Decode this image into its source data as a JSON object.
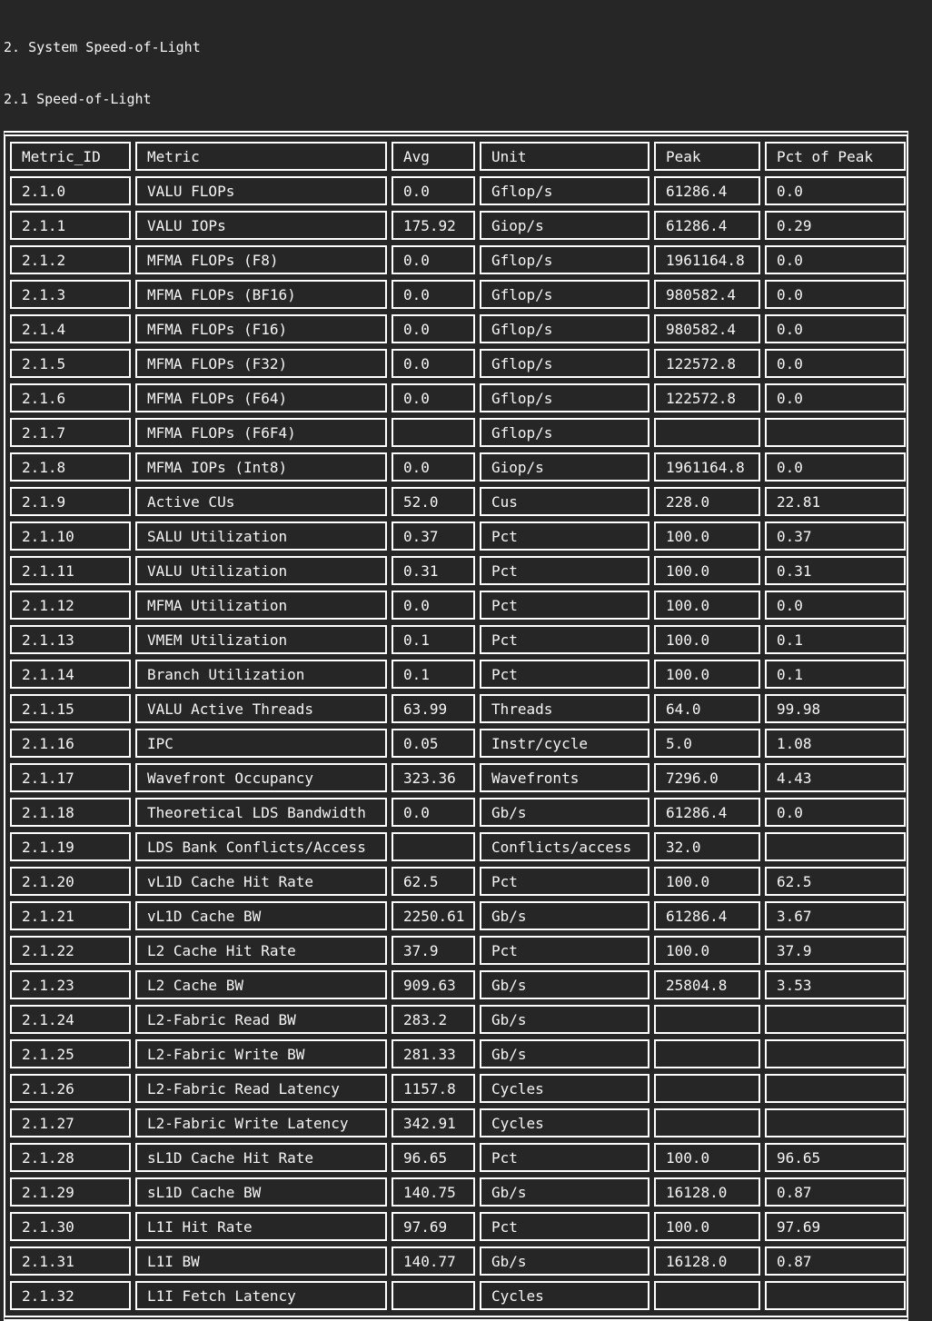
{
  "page": {
    "title_line1": "2. System Speed-of-Light",
    "title_line2": "2.1 Speed-of-Light"
  },
  "colors": {
    "background": "#262626",
    "border": "#ffffff",
    "text": "#f5f5f5"
  },
  "table": {
    "columns": [
      "Metric_ID",
      "Metric",
      "Avg",
      "Unit",
      "Peak",
      "Pct of Peak"
    ],
    "rows": [
      [
        "2.1.0",
        "VALU FLOPs",
        "0.0",
        "Gflop/s",
        "61286.4",
        "0.0"
      ],
      [
        "2.1.1",
        "VALU IOPs",
        "175.92",
        "Giop/s",
        "61286.4",
        "0.29"
      ],
      [
        "2.1.2",
        "MFMA FLOPs (F8)",
        "0.0",
        "Gflop/s",
        "1961164.8",
        "0.0"
      ],
      [
        "2.1.3",
        "MFMA FLOPs (BF16)",
        "0.0",
        "Gflop/s",
        "980582.4",
        "0.0"
      ],
      [
        "2.1.4",
        "MFMA FLOPs (F16)",
        "0.0",
        "Gflop/s",
        "980582.4",
        "0.0"
      ],
      [
        "2.1.5",
        "MFMA FLOPs (F32)",
        "0.0",
        "Gflop/s",
        "122572.8",
        "0.0"
      ],
      [
        "2.1.6",
        "MFMA FLOPs (F64)",
        "0.0",
        "Gflop/s",
        "122572.8",
        "0.0"
      ],
      [
        "2.1.7",
        "MFMA FLOPs (F6F4)",
        "",
        "Gflop/s",
        "",
        ""
      ],
      [
        "2.1.8",
        "MFMA IOPs (Int8)",
        "0.0",
        "Giop/s",
        "1961164.8",
        "0.0"
      ],
      [
        "2.1.9",
        "Active CUs",
        "52.0",
        "Cus",
        "228.0",
        "22.81"
      ],
      [
        "2.1.10",
        "SALU Utilization",
        "0.37",
        "Pct",
        "100.0",
        "0.37"
      ],
      [
        "2.1.11",
        "VALU Utilization",
        "0.31",
        "Pct",
        "100.0",
        "0.31"
      ],
      [
        "2.1.12",
        "MFMA Utilization",
        "0.0",
        "Pct",
        "100.0",
        "0.0"
      ],
      [
        "2.1.13",
        "VMEM Utilization",
        "0.1",
        "Pct",
        "100.0",
        "0.1"
      ],
      [
        "2.1.14",
        "Branch Utilization",
        "0.1",
        "Pct",
        "100.0",
        "0.1"
      ],
      [
        "2.1.15",
        "VALU Active Threads",
        "63.99",
        "Threads",
        "64.0",
        "99.98"
      ],
      [
        "2.1.16",
        "IPC",
        "0.05",
        "Instr/cycle",
        "5.0",
        "1.08"
      ],
      [
        "2.1.17",
        "Wavefront Occupancy",
        "323.36",
        "Wavefronts",
        "7296.0",
        "4.43"
      ],
      [
        "2.1.18",
        "Theoretical LDS Bandwidth",
        "0.0",
        "Gb/s",
        "61286.4",
        "0.0"
      ],
      [
        "2.1.19",
        "LDS Bank Conflicts/Access",
        "",
        "Conflicts/access",
        "32.0",
        ""
      ],
      [
        "2.1.20",
        "vL1D Cache Hit Rate",
        "62.5",
        "Pct",
        "100.0",
        "62.5"
      ],
      [
        "2.1.21",
        "vL1D Cache BW",
        "2250.61",
        "Gb/s",
        "61286.4",
        "3.67"
      ],
      [
        "2.1.22",
        "L2 Cache Hit Rate",
        "37.9",
        "Pct",
        "100.0",
        "37.9"
      ],
      [
        "2.1.23",
        "L2 Cache BW",
        "909.63",
        "Gb/s",
        "25804.8",
        "3.53"
      ],
      [
        "2.1.24",
        "L2-Fabric Read BW",
        "283.2",
        "Gb/s",
        "",
        ""
      ],
      [
        "2.1.25",
        "L2-Fabric Write BW",
        "281.33",
        "Gb/s",
        "",
        ""
      ],
      [
        "2.1.26",
        "L2-Fabric Read Latency",
        "1157.8",
        "Cycles",
        "",
        ""
      ],
      [
        "2.1.27",
        "L2-Fabric Write Latency",
        "342.91",
        "Cycles",
        "",
        ""
      ],
      [
        "2.1.28",
        "sL1D Cache Hit Rate",
        "96.65",
        "Pct",
        "100.0",
        "96.65"
      ],
      [
        "2.1.29",
        "sL1D Cache BW",
        "140.75",
        "Gb/s",
        "16128.0",
        "0.87"
      ],
      [
        "2.1.30",
        "L1I Hit Rate",
        "97.69",
        "Pct",
        "100.0",
        "97.69"
      ],
      [
        "2.1.31",
        "L1I BW",
        "140.77",
        "Gb/s",
        "16128.0",
        "0.87"
      ],
      [
        "2.1.32",
        "L1I Fetch Latency",
        "",
        "Cycles",
        "",
        ""
      ]
    ]
  }
}
